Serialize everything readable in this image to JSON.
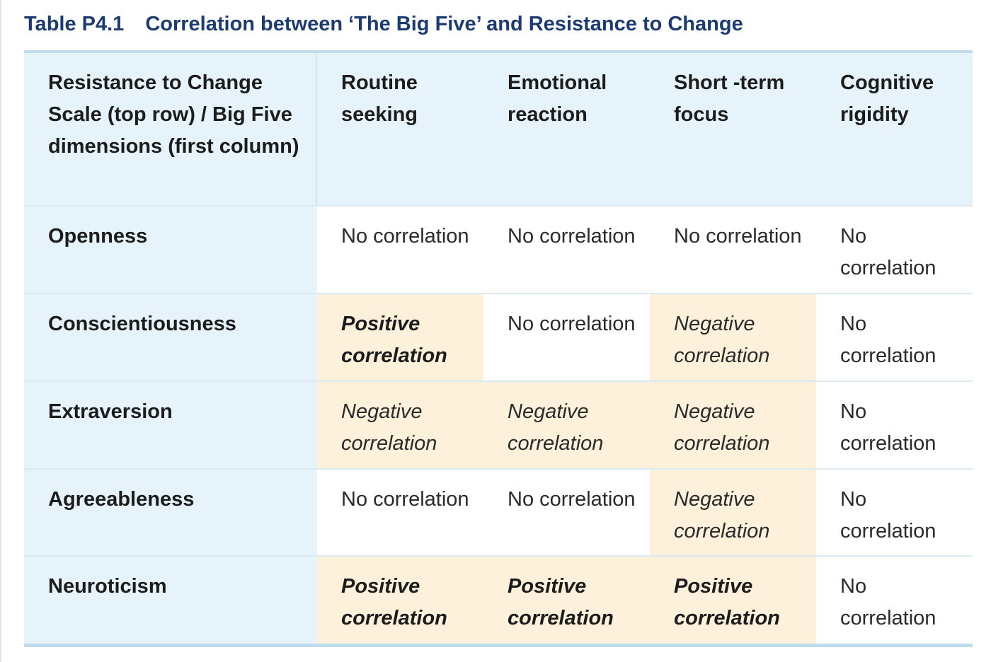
{
  "caption": {
    "label": "Table P4.1",
    "title": "Correlation between ‘The Big Five’ and Resistance to Change"
  },
  "table": {
    "corner": "Resistance to Change Scale (top row) / Big Five dimensions (first column)",
    "columns": [
      "Routine seeking",
      "Emotional reaction",
      "Short -term focus",
      "Cognitive rigidity"
    ],
    "rows": [
      {
        "label": "Openness",
        "cells": [
          {
            "text": "No correlation",
            "type": "none"
          },
          {
            "text": "No correlation",
            "type": "none"
          },
          {
            "text": "No correlation",
            "type": "none"
          },
          {
            "text": "No correlation",
            "type": "none"
          }
        ]
      },
      {
        "label": "Conscientiousness",
        "cells": [
          {
            "text": "Positive correlation",
            "type": "positive"
          },
          {
            "text": "No correlation",
            "type": "none"
          },
          {
            "text": "Negative correlation",
            "type": "negative"
          },
          {
            "text": "No correlation",
            "type": "none"
          }
        ]
      },
      {
        "label": "Extraversion",
        "cells": [
          {
            "text": "Negative correlation",
            "type": "negative"
          },
          {
            "text": "Negative correlation",
            "type": "negative"
          },
          {
            "text": "Negative correlation",
            "type": "negative"
          },
          {
            "text": "No correlation",
            "type": "none"
          }
        ]
      },
      {
        "label": "Agreeableness",
        "cells": [
          {
            "text": "No correlation",
            "type": "none"
          },
          {
            "text": "No correlation",
            "type": "none"
          },
          {
            "text": "Negative correlation",
            "type": "negative"
          },
          {
            "text": "No correlation",
            "type": "none"
          }
        ]
      },
      {
        "label": "Neuroticism",
        "cells": [
          {
            "text": "Positive correlation",
            "type": "positive"
          },
          {
            "text": "Positive correlation",
            "type": "positive"
          },
          {
            "text": "Positive correlation",
            "type": "positive"
          },
          {
            "text": "No correlation",
            "type": "none"
          }
        ]
      }
    ]
  },
  "colors": {
    "caption": "#1d3b6e",
    "header_bg": "#e6f3fb",
    "highlight_bg": "#fdf1dc",
    "rule": "#bfdcee"
  }
}
